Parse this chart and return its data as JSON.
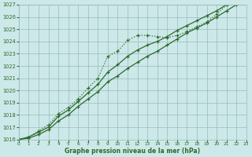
{
  "title": "Graphe pression niveau de la mer (hPa)",
  "bg_color": "#cce8e8",
  "grid_color": "#99bbbb",
  "line_color": "#2d6a2d",
  "x_min": 0,
  "x_max": 23,
  "y_min": 1016,
  "y_max": 1027,
  "x_ticks": [
    0,
    1,
    2,
    3,
    4,
    5,
    6,
    7,
    8,
    9,
    10,
    11,
    12,
    13,
    14,
    15,
    16,
    17,
    18,
    19,
    20,
    21,
    22,
    23
  ],
  "y_ticks": [
    1016,
    1017,
    1018,
    1019,
    1020,
    1021,
    1022,
    1023,
    1024,
    1025,
    1026,
    1027
  ],
  "series1_x": [
    0,
    1,
    2,
    3,
    4,
    5,
    6,
    7,
    8,
    9,
    10,
    11,
    12,
    13,
    14,
    15,
    16,
    17,
    18,
    19,
    20,
    21,
    22,
    23
  ],
  "series1_y": [
    1016.0,
    1016.2,
    1016.7,
    1017.2,
    1018.1,
    1018.6,
    1019.3,
    1020.2,
    1021.0,
    1022.8,
    1023.2,
    1024.1,
    1024.5,
    1024.5,
    1024.4,
    1024.3,
    1024.5,
    1024.8,
    1025.2,
    1025.6,
    1026.2,
    1027.0,
    1027.1,
    1027.2
  ],
  "series2_x": [
    0,
    1,
    2,
    3,
    4,
    5,
    6,
    7,
    8,
    9,
    10,
    11,
    12,
    13,
    14,
    15,
    16,
    17,
    18,
    19,
    20,
    21,
    22,
    23
  ],
  "series2_y": [
    1016.0,
    1016.2,
    1016.6,
    1017.0,
    1017.9,
    1018.4,
    1019.1,
    1019.8,
    1020.5,
    1021.5,
    1022.1,
    1022.8,
    1023.3,
    1023.7,
    1024.0,
    1024.4,
    1024.9,
    1025.3,
    1025.7,
    1026.1,
    1026.5,
    1027.0,
    1027.1,
    1027.2
  ],
  "series3_x": [
    0,
    1,
    2,
    3,
    4,
    5,
    6,
    7,
    8,
    9,
    10,
    11,
    12,
    13,
    14,
    15,
    16,
    17,
    18,
    19,
    20,
    21,
    22,
    23
  ],
  "series3_y": [
    1016.0,
    1016.1,
    1016.4,
    1016.8,
    1017.5,
    1018.0,
    1018.7,
    1019.3,
    1019.9,
    1020.7,
    1021.2,
    1021.8,
    1022.3,
    1022.8,
    1023.2,
    1023.7,
    1024.2,
    1024.7,
    1025.1,
    1025.5,
    1026.0,
    1026.5,
    1027.0,
    1027.2
  ]
}
